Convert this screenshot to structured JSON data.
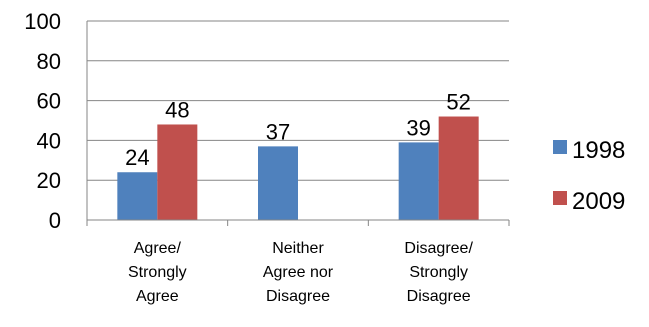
{
  "chart_data": {
    "type": "bar",
    "categories": [
      [
        "Agree/",
        "Strongly",
        "Agree"
      ],
      [
        "Neither",
        "Agree nor",
        "Disagree"
      ],
      [
        "Disagree/",
        "Strongly",
        "Disagree"
      ]
    ],
    "series": [
      {
        "name": "1998",
        "color": "#4F81BD",
        "values": [
          24,
          37,
          39
        ],
        "labels": [
          "24",
          "37",
          "39"
        ]
      },
      {
        "name": "2009",
        "color": "#C0504D",
        "values": [
          48,
          null,
          52
        ],
        "labels": [
          "48",
          "",
          "52"
        ]
      }
    ],
    "yticks": [
      "0",
      "20",
      "40",
      "60",
      "80",
      "100"
    ],
    "ylim": [
      0,
      100
    ],
    "grid": true,
    "legend_position": "right",
    "title": "",
    "xlabel": "",
    "ylabel": ""
  }
}
